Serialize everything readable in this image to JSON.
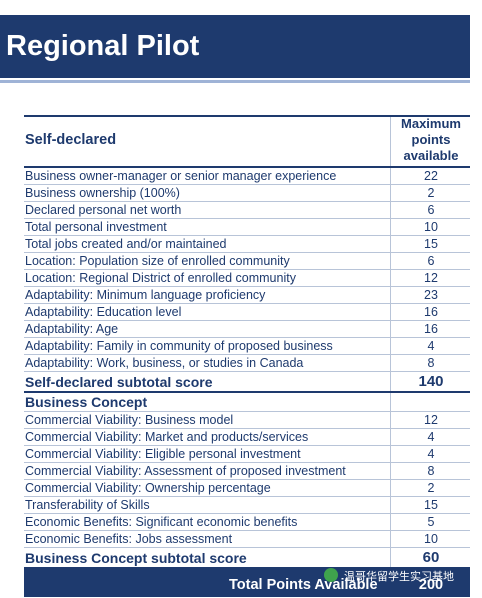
{
  "header": {
    "title": "Regional Pilot"
  },
  "table": {
    "columns": [
      "Self-declared",
      "Maximum points available"
    ],
    "sections": [
      {
        "items": [
          [
            "Business owner-manager or senior manager experience",
            22
          ],
          [
            "Business ownership (100%)",
            2
          ],
          [
            "Declared personal net worth",
            6
          ],
          [
            "Total personal investment",
            10
          ],
          [
            "Total jobs created and/or maintained",
            15
          ],
          [
            "Location: Population size of enrolled community",
            6
          ],
          [
            "Location: Regional District of enrolled community",
            12
          ],
          [
            "Adaptability: Minimum language proficiency",
            23
          ],
          [
            "Adaptability: Education level",
            16
          ],
          [
            "Adaptability: Age",
            16
          ],
          [
            "Adaptability: Family in community of proposed business",
            4
          ],
          [
            "Adaptability: Work, business, or studies in Canada",
            8
          ]
        ],
        "subtotal": [
          "Self-declared subtotal score",
          140
        ]
      },
      {
        "title": "Business Concept",
        "items": [
          [
            "Commercial Viability: Business model",
            12
          ],
          [
            "Commercial Viability: Market and products/services",
            4
          ],
          [
            "Commercial Viability: Eligible personal investment",
            4
          ],
          [
            "Commercial Viability: Assessment of proposed investment",
            8
          ],
          [
            "Commercial Viability: Ownership percentage",
            2
          ],
          [
            "Transferability of Skills",
            15
          ],
          [
            "Economic Benefits: Significant economic benefits",
            5
          ],
          [
            "Economic Benefits: Jobs assessment",
            10
          ]
        ],
        "subtotal": [
          "Business Concept subtotal score",
          60
        ]
      }
    ],
    "total": [
      "Total Points Available",
      200
    ]
  },
  "watermark": "温哥华留学生实习基地"
}
